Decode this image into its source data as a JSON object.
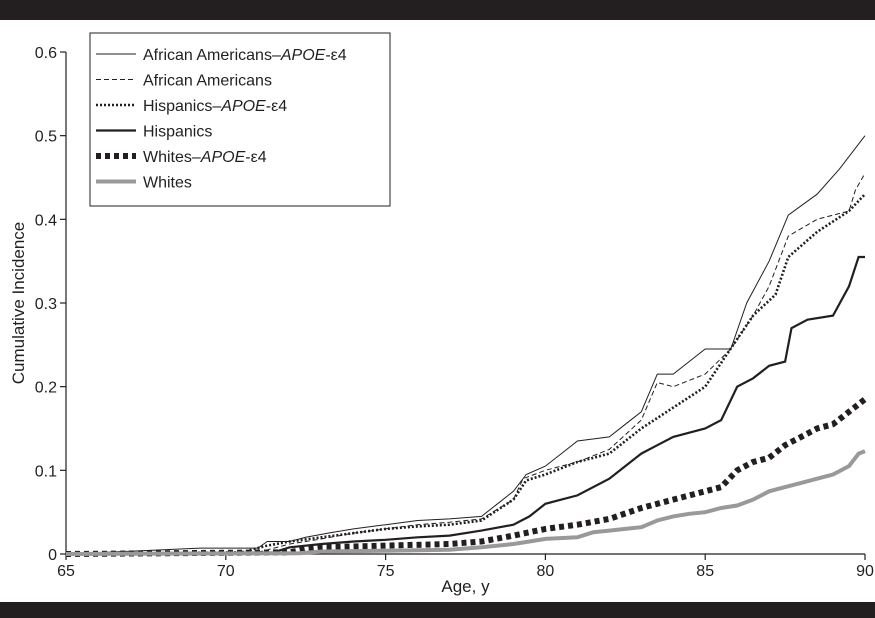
{
  "chart_data": {
    "type": "line",
    "title": "",
    "xlabel": "Age, y",
    "ylabel": "Cumulative Incidence",
    "xlim": [
      65,
      90
    ],
    "ylim": [
      0,
      0.6
    ],
    "xticks": [
      "65",
      "70",
      "75",
      "80",
      "85",
      "90"
    ],
    "yticks": [
      "0",
      "0.1",
      "0.2",
      "0.3",
      "0.4",
      "0.5",
      "0.6"
    ],
    "grid": false,
    "legend_position": "top-left",
    "series": [
      {
        "name": "African Americans–APOE-ε4",
        "name_parts": [
          "African Americans–",
          "APOE",
          "-ε4"
        ],
        "style": "thin-solid",
        "color": "#231f20",
        "x": [
          65,
          69.2,
          71.0,
          71.3,
          72.0,
          72.5,
          73.2,
          74.0,
          75.0,
          76.0,
          77.0,
          78.0,
          78.5,
          79.0,
          79.4,
          80.0,
          80.5,
          81.0,
          82.0,
          82.5,
          83.0,
          83.5,
          84.0,
          85.0,
          85.8,
          86.3,
          87.0,
          87.6,
          88.5,
          89.2,
          90.0
        ],
        "y": [
          0,
          0.007,
          0.007,
          0.015,
          0.015,
          0.02,
          0.025,
          0.03,
          0.035,
          0.04,
          0.042,
          0.045,
          0.06,
          0.075,
          0.095,
          0.105,
          0.12,
          0.135,
          0.14,
          0.155,
          0.17,
          0.215,
          0.215,
          0.245,
          0.245,
          0.3,
          0.35,
          0.405,
          0.43,
          0.46,
          0.5
        ]
      },
      {
        "name": "African Americans",
        "name_parts": [
          "African Americans"
        ],
        "style": "thin-dashed",
        "color": "#231f20",
        "x": [
          65,
          71.0,
          72.0,
          73.0,
          74.0,
          75.0,
          76.0,
          77.0,
          78.0,
          79.0,
          79.3,
          80.0,
          81.0,
          82.0,
          83.0,
          83.5,
          84.0,
          85.0,
          85.8,
          86.5,
          87.0,
          87.6,
          88.5,
          89.5,
          89.7,
          90.0
        ],
        "y": [
          0,
          0.002,
          0.012,
          0.018,
          0.025,
          0.03,
          0.035,
          0.038,
          0.042,
          0.065,
          0.09,
          0.1,
          0.11,
          0.125,
          0.16,
          0.205,
          0.2,
          0.215,
          0.245,
          0.285,
          0.32,
          0.38,
          0.4,
          0.41,
          0.435,
          0.455
        ]
      },
      {
        "name": "Hispanics–APOE-ε4",
        "name_parts": [
          "Hispanics–",
          "APOE",
          "-ε4"
        ],
        "style": "dotted",
        "color": "#231f20",
        "x": [
          65,
          70.5,
          71.3,
          72.0,
          73.0,
          74.0,
          75.0,
          76.0,
          77.0,
          78.0,
          79.0,
          79.4,
          80.0,
          81.0,
          82.0,
          83.0,
          84.0,
          85.0,
          85.7,
          86.5,
          87.2,
          87.6,
          88.5,
          89.5,
          90.0
        ],
        "y": [
          0,
          0.002,
          0.01,
          0.015,
          0.02,
          0.025,
          0.03,
          0.033,
          0.035,
          0.04,
          0.065,
          0.088,
          0.095,
          0.11,
          0.12,
          0.15,
          0.175,
          0.2,
          0.24,
          0.285,
          0.31,
          0.355,
          0.385,
          0.41,
          0.43
        ]
      },
      {
        "name": "Hispanics",
        "name_parts": [
          "Hispanics"
        ],
        "style": "medium-solid",
        "color": "#231f20",
        "x": [
          65,
          71.5,
          72.0,
          73.0,
          74.0,
          75.0,
          76.0,
          77.0,
          78.0,
          79.0,
          79.5,
          80.0,
          80.5,
          81.0,
          82.0,
          82.5,
          83.0,
          83.5,
          84.0,
          84.5,
          85.0,
          85.5,
          86.0,
          86.5,
          87.0,
          87.5,
          87.7,
          88.2,
          89.0,
          89.5,
          89.8,
          90.0
        ],
        "y": [
          0,
          0.002,
          0.008,
          0.012,
          0.015,
          0.017,
          0.02,
          0.022,
          0.028,
          0.035,
          0.045,
          0.06,
          0.065,
          0.07,
          0.09,
          0.105,
          0.12,
          0.13,
          0.14,
          0.145,
          0.15,
          0.16,
          0.2,
          0.21,
          0.225,
          0.23,
          0.27,
          0.28,
          0.285,
          0.32,
          0.355,
          0.355
        ]
      },
      {
        "name": "Whites–APOE-ε4",
        "name_parts": [
          "Whites–",
          "APOE",
          "-ε4"
        ],
        "style": "thick-dotted",
        "color": "#231f20",
        "x": [
          65,
          72.0,
          72.5,
          73.0,
          75.0,
          77.0,
          78.0,
          79.0,
          80.0,
          81.0,
          82.0,
          83.0,
          84.0,
          85.0,
          85.5,
          86.0,
          86.5,
          87.0,
          87.5,
          88.0,
          88.5,
          89.0,
          89.5,
          90.0
        ],
        "y": [
          0,
          0.002,
          0.006,
          0.008,
          0.01,
          0.012,
          0.015,
          0.022,
          0.03,
          0.035,
          0.042,
          0.055,
          0.065,
          0.075,
          0.08,
          0.1,
          0.11,
          0.115,
          0.13,
          0.14,
          0.15,
          0.155,
          0.17,
          0.185
        ]
      },
      {
        "name": "Whites",
        "name_parts": [
          "Whites"
        ],
        "style": "thick-gray-solid",
        "color": "#999999",
        "x": [
          65,
          72.3,
          73.0,
          75.0,
          77.0,
          78.0,
          79.0,
          79.5,
          80.0,
          81.0,
          81.5,
          82.0,
          82.5,
          83.0,
          83.5,
          84.0,
          84.5,
          85.0,
          85.5,
          86.0,
          86.5,
          87.0,
          87.5,
          88.0,
          88.5,
          89.0,
          89.5,
          89.8,
          90.0
        ],
        "y": [
          0,
          0.001,
          0.003,
          0.004,
          0.005,
          0.008,
          0.012,
          0.015,
          0.018,
          0.02,
          0.026,
          0.028,
          0.03,
          0.032,
          0.04,
          0.045,
          0.048,
          0.05,
          0.055,
          0.058,
          0.065,
          0.075,
          0.08,
          0.085,
          0.09,
          0.095,
          0.105,
          0.12,
          0.123
        ]
      }
    ]
  }
}
